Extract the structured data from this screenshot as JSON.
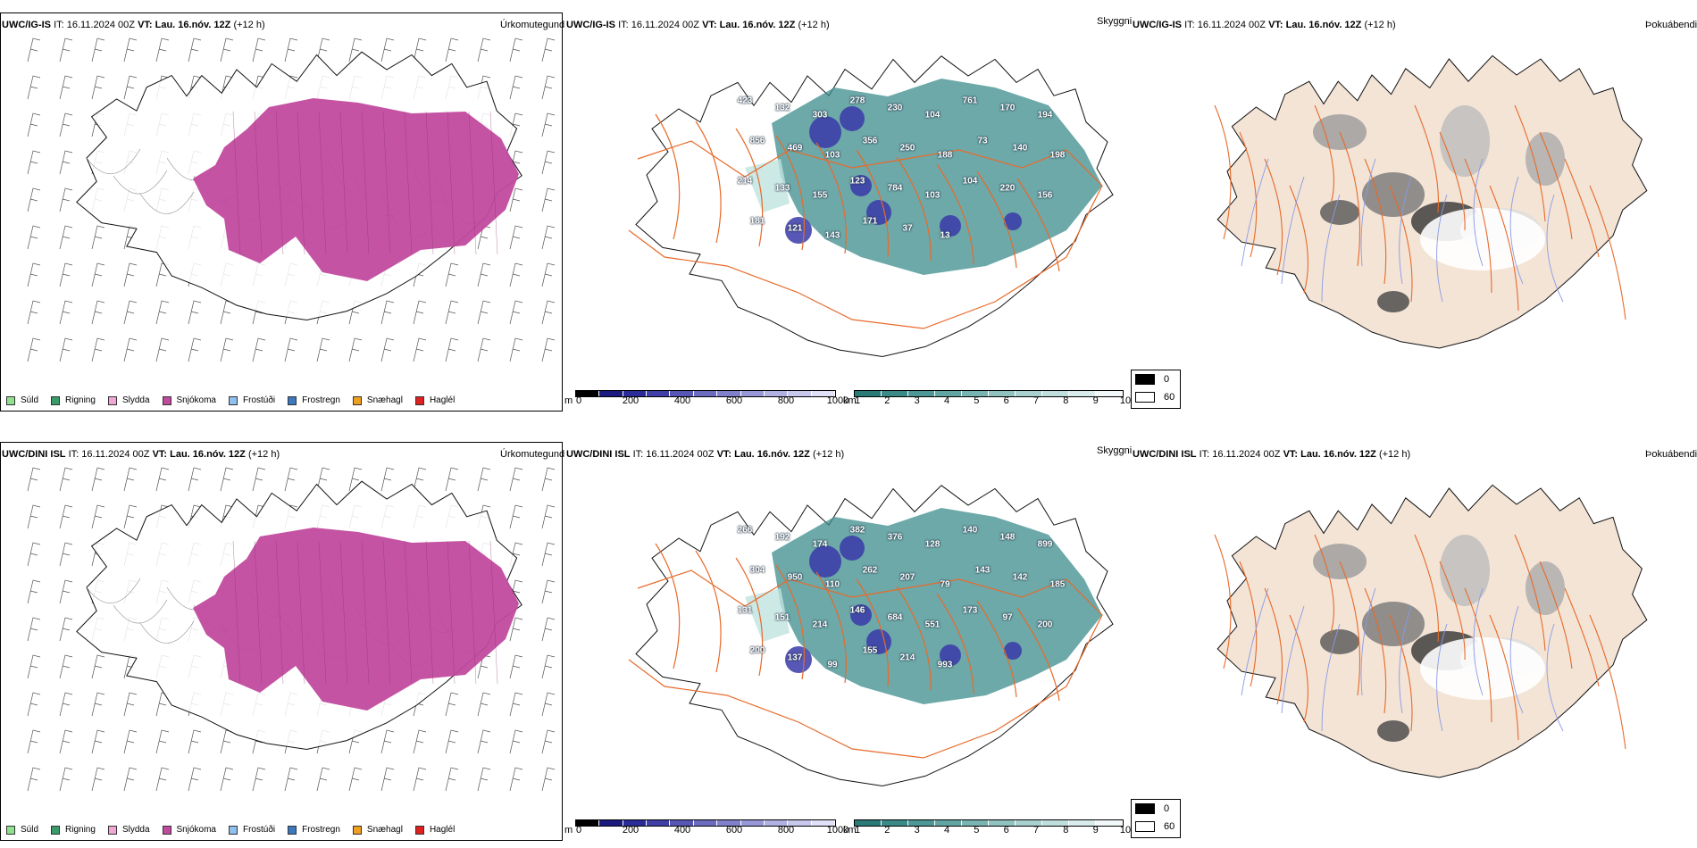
{
  "rows": [
    {
      "model": "UWC/IG-IS",
      "it_label": "IT:",
      "it_value": "16.11.2024 00Z",
      "vt_label": "VT:",
      "vt_value": "Lau. 16.nóv. 12Z",
      "lead": "(+12 h)",
      "precip_title": "Úrkomutegund",
      "cloud_title": "Skyggni",
      "fog_title": "Þokuábendi",
      "peaks": [
        "423",
        "132",
        "303",
        "278",
        "230",
        "104",
        "761",
        "170",
        "194",
        "856",
        "469",
        "103",
        "356",
        "250",
        "188",
        "73",
        "140",
        "198",
        "214",
        "133",
        "155",
        "123",
        "784",
        "103",
        "104",
        "220",
        "156",
        "181",
        "121",
        "143",
        "171",
        "37",
        "13"
      ]
    },
    {
      "model": "UWC/DINI ISL",
      "it_label": "IT:",
      "it_value": "16.11.2024 00Z",
      "vt_label": "VT:",
      "vt_value": "Lau. 16.nóv. 12Z",
      "lead": "(+12 h)",
      "precip_title": "Úrkomutegund",
      "cloud_title": "Skyggni",
      "fog_title": "Þokuábendi",
      "peaks": [
        "266",
        "192",
        "174",
        "382",
        "376",
        "128",
        "140",
        "148",
        "899",
        "304",
        "950",
        "110",
        "262",
        "207",
        "79",
        "143",
        "142",
        "185",
        "131",
        "151",
        "214",
        "146",
        "684",
        "551",
        "173",
        "97",
        "200",
        "200",
        "137",
        "99",
        "155",
        "214",
        "993"
      ]
    }
  ],
  "precip_legend": [
    {
      "label": "Súld",
      "color": "#8fe08f"
    },
    {
      "label": "Rigning",
      "color": "#3a9a6a"
    },
    {
      "label": "Slydda",
      "color": "#f2a6d6"
    },
    {
      "label": "Snjókoma",
      "color": "#c24a9e"
    },
    {
      "label": "Frostúði",
      "color": "#8fc0ee"
    },
    {
      "label": "Frostregn",
      "color": "#3a78c0"
    },
    {
      "label": "Snæhagl",
      "color": "#f0a020"
    },
    {
      "label": "Haglél",
      "color": "#e02020"
    }
  ],
  "cloud_base_bar": {
    "unit": "m",
    "ticks": [
      "0",
      "200",
      "400",
      "600",
      "800",
      "1000"
    ]
  },
  "visibility_bar": {
    "unit": "km",
    "ticks": [
      "1",
      "2",
      "3",
      "4",
      "5",
      "6",
      "7",
      "8",
      "9",
      "10"
    ]
  },
  "fog_legend": {
    "values": [
      "0",
      "60"
    ]
  },
  "colors": {
    "snow": "#c24a9e",
    "teal": "#3c8c8c",
    "terrain": "#f3e4d6",
    "roads": "#e86a2a",
    "outline": "#000000"
  }
}
